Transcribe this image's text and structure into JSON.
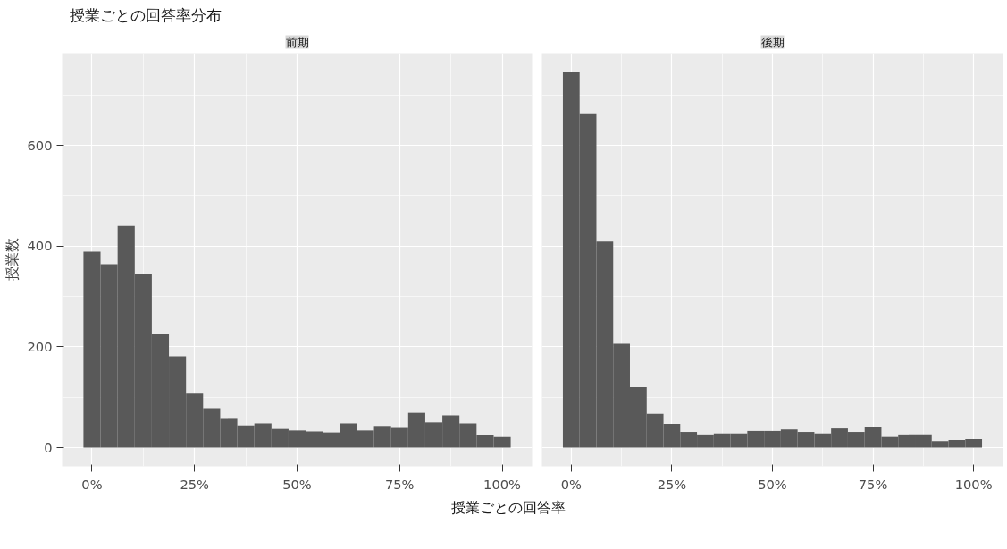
{
  "chart_data": [
    {
      "type": "histogram",
      "title": "前期",
      "subtitle": "授業ごとの回答率分布",
      "ylabel": "授業数",
      "xlabel": "授業ごとの回答率",
      "color": "#595959",
      "bins": [
        -2.08,
        2.08,
        6.25,
        10.42,
        14.58,
        18.75,
        22.92,
        27.08,
        31.25,
        35.42,
        39.58,
        43.75,
        47.92,
        52.08,
        56.25,
        60.42,
        64.58,
        68.75,
        72.92,
        77.08,
        81.25,
        85.42,
        89.58,
        93.75,
        97.92,
        102.08
      ],
      "values": [
        389,
        364,
        440,
        345,
        226,
        181,
        107,
        78,
        57,
        44,
        48,
        37,
        34,
        32,
        30,
        48,
        34,
        43,
        39,
        69,
        50,
        64,
        48,
        25,
        21
      ],
      "xlim": [
        -7.29,
        107.29
      ],
      "ylim": [
        -37.3,
        783.3
      ],
      "xticks": [
        {
          "value": 0,
          "label": "0%"
        },
        {
          "value": 25,
          "label": "25%"
        },
        {
          "value": 50,
          "label": "50%"
        },
        {
          "value": 75,
          "label": "75%"
        },
        {
          "value": 100,
          "label": "100%"
        }
      ],
      "yticks": [
        0,
        200,
        400,
        600
      ],
      "grid": true
    },
    {
      "type": "histogram",
      "title": "後期",
      "color": "#595959",
      "bins": [
        -2.08,
        2.08,
        6.25,
        10.42,
        14.58,
        18.75,
        22.92,
        27.08,
        31.25,
        35.42,
        39.58,
        43.75,
        47.92,
        52.08,
        56.25,
        60.42,
        64.58,
        68.75,
        72.92,
        77.08,
        81.25,
        85.42,
        89.58,
        93.75,
        97.92,
        102.08
      ],
      "values": [
        746,
        664,
        409,
        206,
        120,
        67,
        47,
        31,
        26,
        28,
        28,
        33,
        33,
        36,
        31,
        28,
        38,
        31,
        40,
        21,
        26,
        26,
        13,
        15,
        17
      ],
      "xlim": [
        -7.29,
        107.29
      ],
      "ylim": [
        -37.3,
        783.3
      ],
      "xticks": [
        {
          "value": 0,
          "label": "0%"
        },
        {
          "value": 25,
          "label": "25%"
        },
        {
          "value": 50,
          "label": "50%"
        },
        {
          "value": 75,
          "label": "75%"
        },
        {
          "value": 100,
          "label": "100%"
        }
      ],
      "yticks": [
        0,
        200,
        400,
        600
      ],
      "grid": true,
      "tick_labels": "x"
    }
  ]
}
